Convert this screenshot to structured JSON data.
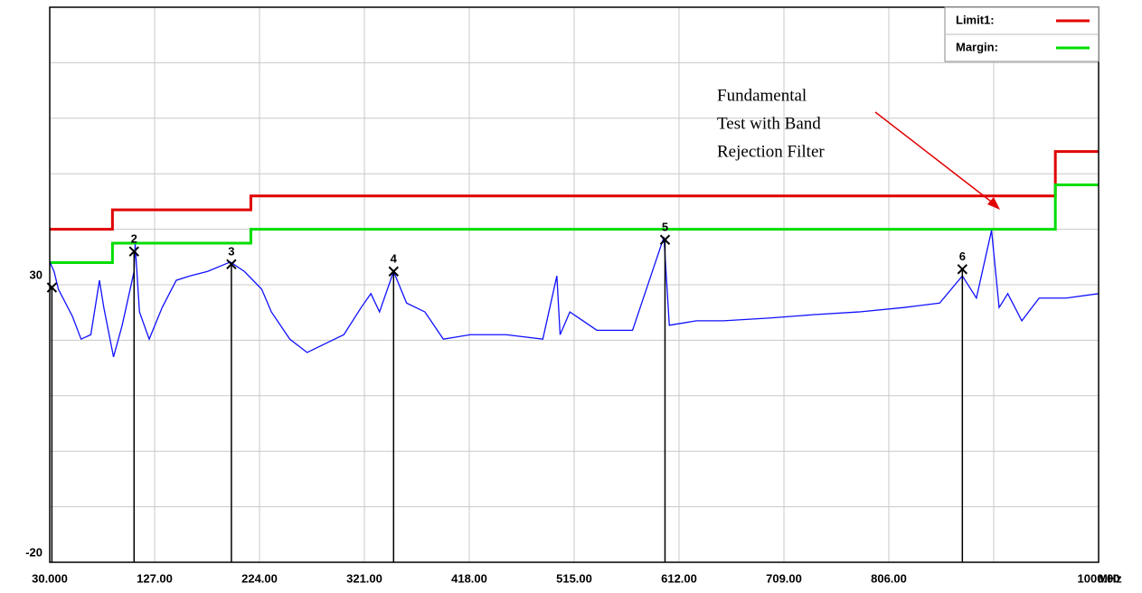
{
  "chart_data": {
    "type": "line",
    "xlim": [
      30,
      1000
    ],
    "ylim": [
      -20,
      80
    ],
    "xticks": [
      {
        "value": 30,
        "label": "30.000"
      },
      {
        "value": 127,
        "label": "127.00"
      },
      {
        "value": 224,
        "label": "224.00"
      },
      {
        "value": 321,
        "label": "321.00"
      },
      {
        "value": 418,
        "label": "418.00"
      },
      {
        "value": 515,
        "label": "515.00"
      },
      {
        "value": 612,
        "label": "612.00"
      },
      {
        "value": 709,
        "label": "709.00"
      },
      {
        "value": 806,
        "label": "806.00"
      },
      {
        "value": 1000,
        "label": "1000.00"
      }
    ],
    "xgrid": [
      30,
      127,
      224,
      321,
      418,
      515,
      612,
      709,
      806,
      903,
      1000
    ],
    "yticks": [
      -20,
      30
    ],
    "ygrid": [
      -20,
      -10,
      0,
      10,
      20,
      30,
      40,
      50,
      60,
      70,
      80
    ],
    "x_unit": "MHz",
    "grid": true,
    "legend": "upper right",
    "series": [
      {
        "name": "Limit1:",
        "color": "#e00000",
        "x": [
          30,
          88,
          88,
          216,
          216,
          960,
          960,
          1000
        ],
        "values": [
          40,
          40,
          43.5,
          43.5,
          46,
          46,
          54,
          54
        ]
      },
      {
        "name": "Margin:",
        "color": "#00dd00",
        "x": [
          30,
          88,
          88,
          216,
          216,
          960,
          960,
          1000
        ],
        "values": [
          34,
          34,
          37.5,
          37.5,
          40,
          40,
          48,
          48
        ]
      },
      {
        "color": "#1010ff",
        "x": [
          30,
          34,
          38,
          51,
          59,
          68,
          76,
          80,
          89,
          97,
          108,
          109,
          113,
          122,
          134,
          147,
          160,
          176,
          197,
          210,
          226,
          235,
          252,
          268,
          285,
          302,
          318,
          327,
          335,
          348,
          360,
          377,
          394,
          419,
          452,
          486,
          499,
          502,
          511,
          536,
          569,
          598,
          603,
          628,
          653,
          695,
          736,
          778,
          820,
          853,
          874,
          887,
          901,
          908,
          916,
          929,
          945,
          970,
          1000
        ],
        "values": [
          34.1,
          32.4,
          29.2,
          24.3,
          20.2,
          21.0,
          30.8,
          25.9,
          17.0,
          22.7,
          32.4,
          37.3,
          25.1,
          20.2,
          25.9,
          30.8,
          31.6,
          32.4,
          34.1,
          32.4,
          29.2,
          25.1,
          20.2,
          17.8,
          19.4,
          21.0,
          25.9,
          28.4,
          25.1,
          32.4,
          26.7,
          25.1,
          20.2,
          21.0,
          21.0,
          20.2,
          31.6,
          21.0,
          25.1,
          21.8,
          21.8,
          38.6,
          22.7,
          23.5,
          23.5,
          24.0,
          24.6,
          25.1,
          25.9,
          26.7,
          31.6,
          27.6,
          39.8,
          25.9,
          28.4,
          23.5,
          27.6,
          27.6,
          28.4
        ]
      }
    ],
    "markers": {
      "x": [
        32,
        108,
        198,
        348,
        599,
        874
      ],
      "values": [
        29.5,
        36,
        33.7,
        32.4,
        38.1,
        32.8
      ],
      "labels": [
        null,
        "2",
        "3",
        "4",
        "5",
        "6"
      ]
    },
    "annotation": [
      "Fundamental",
      "Test with Band",
      "Rejection Filter"
    ]
  }
}
